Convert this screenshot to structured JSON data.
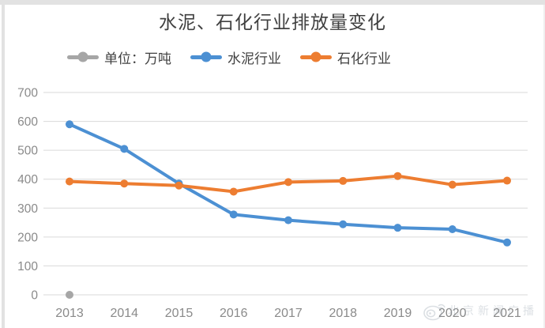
{
  "title": "水泥、石化行业排放量变化",
  "watermark": {
    "icon": "weibo-icon",
    "text": "北京新闻广播"
  },
  "colors": {
    "gridline": "#d9d9d9",
    "tick_text": "#8a8a8a",
    "title_text": "#404040",
    "legend_text": "#404040",
    "unit_series": "#A6A6A6",
    "cement_series": "#4C90D3",
    "petrochemical_series": "#ED7D31",
    "background": "#ffffff"
  },
  "chart_data": {
    "type": "line",
    "title": "水泥、石化行业排放量变化",
    "categories": [
      "2013",
      "2014",
      "2015",
      "2016",
      "2017",
      "2018",
      "2019",
      "2020",
      "2021"
    ],
    "series": [
      {
        "id": "unit",
        "name": "单位：万吨",
        "color": "#A6A6A6",
        "values": [
          0,
          null,
          null,
          null,
          null,
          null,
          null,
          null,
          null
        ]
      },
      {
        "id": "cement",
        "name": "水泥行业",
        "color": "#4C90D3",
        "values": [
          590,
          505,
          385,
          278,
          258,
          244,
          232,
          227,
          181
        ]
      },
      {
        "id": "petrochemical",
        "name": "石化行业",
        "color": "#ED7D31",
        "values": [
          392,
          385,
          378,
          357,
          390,
          394,
          411,
          381,
          395
        ]
      }
    ],
    "xlabel": "",
    "ylabel": "",
    "ylim": [
      0,
      700
    ],
    "yticks": [
      0,
      100,
      200,
      300,
      400,
      500,
      600,
      700
    ],
    "grid": true,
    "legend_position": "top",
    "markers": true
  }
}
